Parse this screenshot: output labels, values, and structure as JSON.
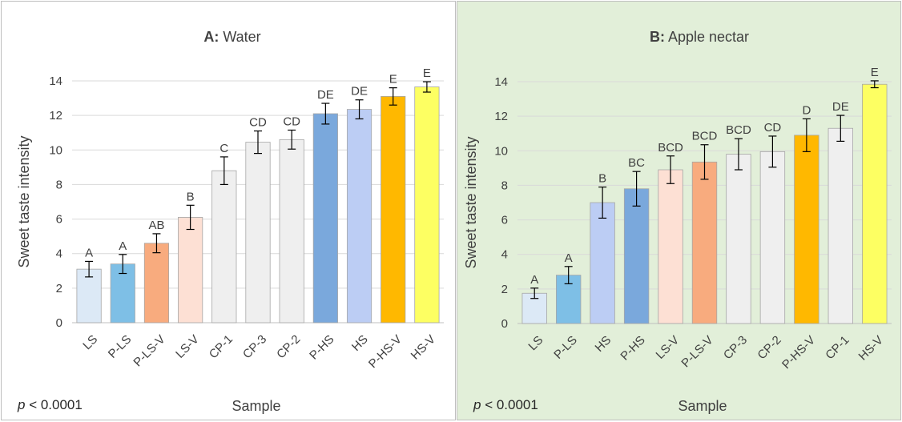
{
  "chart_data": [
    {
      "type": "bar",
      "title_prefix": "A:",
      "title": "Water",
      "xlabel": "Sample",
      "ylabel": "Sweet taste intensity",
      "ylim": [
        0,
        14
      ],
      "yticks": [
        0,
        2,
        4,
        6,
        8,
        10,
        12,
        14
      ],
      "grid": true,
      "footnote_p": "p",
      "footnote_rest": " < 0.0001",
      "categories": [
        "LS",
        "P-LS",
        "P-LS-V",
        "LS-V",
        "CP-1",
        "CP-3",
        "CP-2",
        "P-HS",
        "HS",
        "P-HS-V",
        "HS-V"
      ],
      "values": [
        3.1,
        3.4,
        4.6,
        6.1,
        8.8,
        10.45,
        10.6,
        12.1,
        12.35,
        13.1,
        13.65
      ],
      "errors": [
        0.45,
        0.55,
        0.55,
        0.7,
        0.8,
        0.65,
        0.55,
        0.6,
        0.55,
        0.5,
        0.3
      ],
      "letters": [
        "A",
        "A",
        "AB",
        "B",
        "C",
        "CD",
        "CD",
        "DE",
        "DE",
        "E",
        "E"
      ],
      "colors": [
        "#dce9f6",
        "#7ebfe6",
        "#f8ab7e",
        "#fde0d4",
        "#efefef",
        "#efefef",
        "#efefef",
        "#7aa8dc",
        "#bccdf4",
        "#ffb800",
        "#fdff62"
      ]
    },
    {
      "type": "bar",
      "title_prefix": "B:",
      "title": "Apple nectar",
      "xlabel": "Sample",
      "ylabel": "Sweet taste intensity",
      "ylim": [
        0,
        14
      ],
      "yticks": [
        0,
        2,
        4,
        6,
        8,
        10,
        12,
        14
      ],
      "grid": true,
      "footnote_p": "p",
      "footnote_rest": " < 0.0001",
      "categories": [
        "LS",
        "P-LS",
        "HS",
        "P-HS",
        "LS-V",
        "P-LS-V",
        "CP-3",
        "CP-2",
        "P-HS-V",
        "CP-1",
        "HS-V"
      ],
      "values": [
        1.75,
        2.8,
        7.0,
        7.8,
        8.9,
        9.35,
        9.8,
        9.95,
        10.9,
        11.3,
        13.85
      ],
      "errors": [
        0.3,
        0.5,
        0.9,
        1.0,
        0.8,
        1.0,
        0.9,
        0.9,
        0.95,
        0.75,
        0.2
      ],
      "letters": [
        "A",
        "A",
        "B",
        "BC",
        "BCD",
        "BCD",
        "BCD",
        "CD",
        "D",
        "DE",
        "E"
      ],
      "colors": [
        "#dce9f6",
        "#7ebfe6",
        "#bccdf4",
        "#7aa8dc",
        "#fde0d4",
        "#f8ab7e",
        "#efefef",
        "#efefef",
        "#ffb800",
        "#efefef",
        "#fdff62"
      ]
    }
  ]
}
